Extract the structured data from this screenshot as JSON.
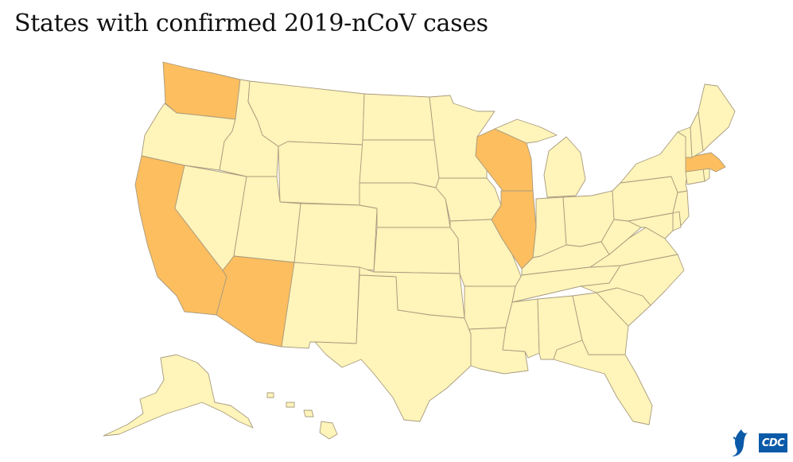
{
  "title": "States with confirmed 2019-nCoV cases",
  "colors": {
    "no_cases": "#fff4b9",
    "confirmed": "#fdbe5f",
    "border": "#a89b7e",
    "logo_blue": "#0a5aa8"
  },
  "confirmed_states": [
    "Washington",
    "California",
    "Arizona",
    "Illinois",
    "Wisconsin",
    "Massachusetts"
  ],
  "logo": {
    "text": "CDC",
    "icon": "hhs-eagle-icon"
  }
}
